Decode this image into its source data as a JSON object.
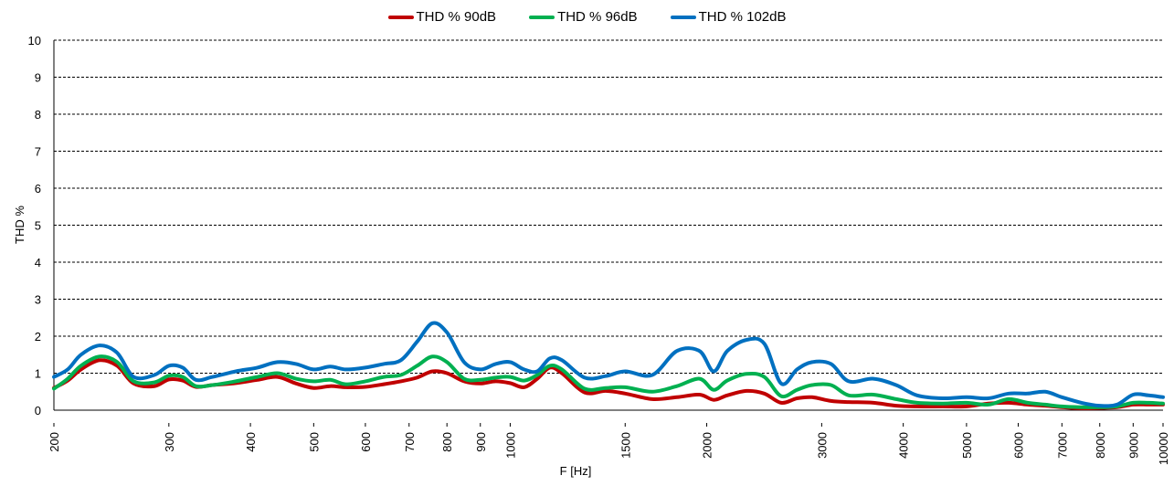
{
  "chart_data": {
    "type": "line",
    "title": "",
    "xlabel": "F [Hz]",
    "ylabel": "THD %",
    "xscale": "log",
    "xlim": [
      200,
      10000
    ],
    "ylim": [
      0,
      10
    ],
    "yticks": [
      0,
      1,
      2,
      3,
      4,
      5,
      6,
      7,
      8,
      9,
      10
    ],
    "xtick_labels": [
      "200",
      "300",
      "400",
      "500",
      "600",
      "700",
      "800",
      "900",
      "1000",
      "1500",
      "2000",
      "3000",
      "4000",
      "5000",
      "6000",
      "7000",
      "8000",
      "9000",
      "10000"
    ],
    "grid": "horizontal dashed",
    "legend_position": "top-center",
    "x": [
      200,
      210,
      220,
      235,
      250,
      265,
      285,
      300,
      315,
      330,
      350,
      380,
      410,
      440,
      470,
      500,
      530,
      560,
      600,
      640,
      680,
      720,
      760,
      800,
      850,
      900,
      950,
      1000,
      1050,
      1100,
      1150,
      1200,
      1300,
      1400,
      1500,
      1650,
      1800,
      1950,
      2050,
      2150,
      2300,
      2450,
      2600,
      2750,
      2900,
      3100,
      3300,
      3600,
      3900,
      4200,
      4600,
      5000,
      5400,
      5800,
      6200,
      6600,
      7000,
      7500,
      8000,
      8500,
      9000,
      9500,
      10000
    ],
    "series": [
      {
        "name": "THD % 90dB",
        "color": "#c00000",
        "y": [
          0.6,
          0.8,
          1.1,
          1.35,
          1.2,
          0.72,
          0.65,
          0.83,
          0.8,
          0.63,
          0.68,
          0.73,
          0.82,
          0.9,
          0.72,
          0.6,
          0.65,
          0.62,
          0.63,
          0.7,
          0.78,
          0.88,
          1.05,
          1.0,
          0.78,
          0.72,
          0.78,
          0.73,
          0.62,
          0.85,
          1.15,
          1.0,
          0.48,
          0.52,
          0.45,
          0.3,
          0.35,
          0.42,
          0.28,
          0.4,
          0.52,
          0.45,
          0.2,
          0.32,
          0.35,
          0.25,
          0.22,
          0.2,
          0.12,
          0.1,
          0.1,
          0.1,
          0.18,
          0.2,
          0.15,
          0.12,
          0.08,
          0.05,
          0.06,
          0.08,
          0.15,
          0.15,
          0.15
        ]
      },
      {
        "name": "THD % 96dB",
        "color": "#00b050",
        "y": [
          0.58,
          0.85,
          1.2,
          1.45,
          1.3,
          0.78,
          0.75,
          0.93,
          0.9,
          0.65,
          0.68,
          0.78,
          0.9,
          1.0,
          0.85,
          0.78,
          0.82,
          0.7,
          0.78,
          0.9,
          0.95,
          1.2,
          1.45,
          1.3,
          0.85,
          0.82,
          0.88,
          0.9,
          0.8,
          0.95,
          1.2,
          1.1,
          0.58,
          0.6,
          0.62,
          0.5,
          0.65,
          0.85,
          0.55,
          0.8,
          0.98,
          0.9,
          0.38,
          0.55,
          0.68,
          0.68,
          0.4,
          0.42,
          0.3,
          0.2,
          0.18,
          0.2,
          0.15,
          0.3,
          0.2,
          0.15,
          0.1,
          0.08,
          0.08,
          0.1,
          0.2,
          0.2,
          0.18
        ]
      },
      {
        "name": "THD % 102dB",
        "color": "#0070c0",
        "y": [
          0.9,
          1.1,
          1.5,
          1.75,
          1.55,
          0.9,
          0.95,
          1.2,
          1.15,
          0.82,
          0.9,
          1.05,
          1.15,
          1.3,
          1.25,
          1.1,
          1.18,
          1.1,
          1.15,
          1.25,
          1.35,
          1.85,
          2.35,
          2.1,
          1.3,
          1.1,
          1.25,
          1.3,
          1.1,
          1.05,
          1.4,
          1.35,
          0.88,
          0.92,
          1.05,
          0.95,
          1.6,
          1.6,
          1.05,
          1.6,
          1.9,
          1.8,
          0.72,
          1.1,
          1.3,
          1.25,
          0.78,
          0.85,
          0.68,
          0.4,
          0.32,
          0.35,
          0.32,
          0.45,
          0.45,
          0.5,
          0.35,
          0.2,
          0.12,
          0.15,
          0.42,
          0.4,
          0.35
        ]
      }
    ]
  }
}
